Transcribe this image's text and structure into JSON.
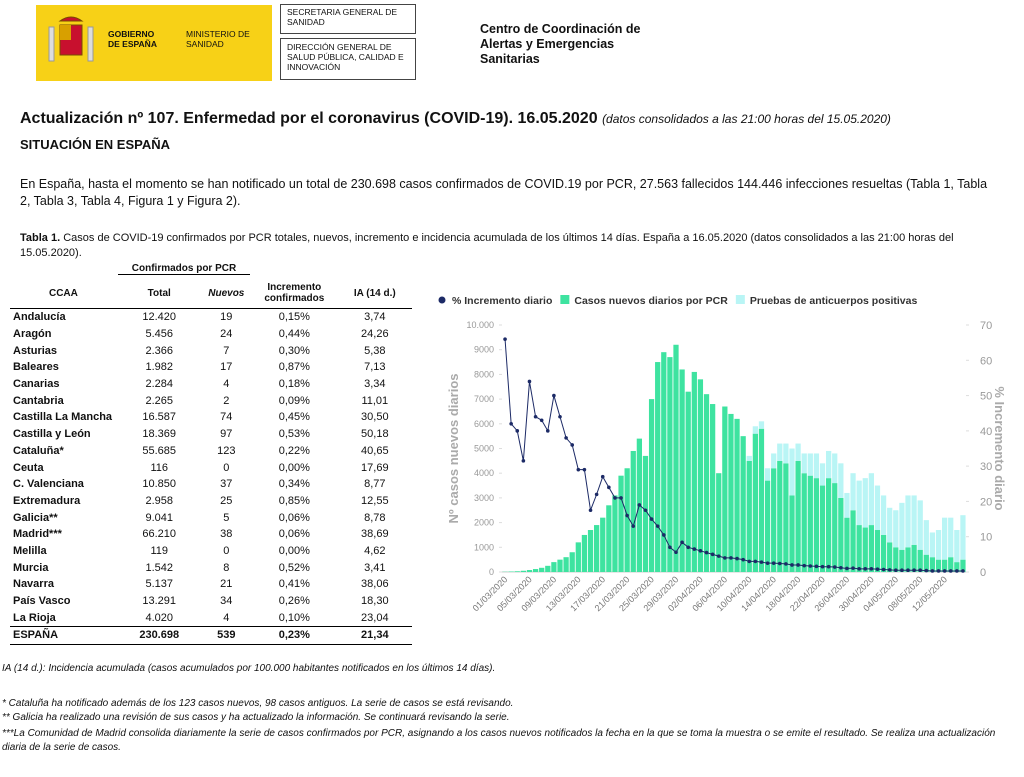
{
  "header": {
    "gov": "GOBIERNO DE ESPAÑA",
    "ministry": "MINISTERIO DE SANIDAD",
    "box1": "SECRETARIA GENERAL DE SANIDAD",
    "box2": "DIRECCIÓN GENERAL DE SALUD PÚBLICA, CALIDAD E INNOVACIÓN",
    "center": "Centro de Coordinación de Alertas y Emergencias Sanitarias"
  },
  "title": "Actualización nº 107. Enfermedad por el coronavirus (COVID-19). 16.05.2020",
  "title_note": "(datos consolidados a las 21:00 horas del 15.05.2020)",
  "section": "SITUACIÓN EN ESPAÑA",
  "intro": "En España, hasta el momento se han notificado un total de 230.698 casos confirmados de COVID.19 por PCR, 27.563 fallecidos 144.446 infecciones resueltas (Tabla 1, Tabla 2, Tabla 3, Tabla 4, Figura 1 y Figura 2).",
  "table": {
    "caption_label": "Tabla 1.",
    "caption": "Casos de COVID-19 confirmados por PCR totales, nuevos, incremento e incidencia acumulada de los últimos 14 días. España a 16.05.2020 (datos consolidados a las 21:00 horas del 15.05.2020).",
    "group": "Confirmados por PCR",
    "columns": [
      "CCAA",
      "Total",
      "Nuevos",
      "Incremento confirmados",
      "IA (14 d.)"
    ],
    "rows": [
      [
        "Andalucía",
        "12.420",
        "19",
        "0,15%",
        "3,74"
      ],
      [
        "Aragón",
        "5.456",
        "24",
        "0,44%",
        "24,26"
      ],
      [
        "Asturias",
        "2.366",
        "7",
        "0,30%",
        "5,38"
      ],
      [
        "Baleares",
        "1.982",
        "17",
        "0,87%",
        "7,13"
      ],
      [
        "Canarias",
        "2.284",
        "4",
        "0,18%",
        "3,34"
      ],
      [
        "Cantabria",
        "2.265",
        "2",
        "0,09%",
        "11,01"
      ],
      [
        "Castilla La Mancha",
        "16.587",
        "74",
        "0,45%",
        "30,50"
      ],
      [
        "Castilla y León",
        "18.369",
        "97",
        "0,53%",
        "50,18"
      ],
      [
        "Cataluña*",
        "55.685",
        "123",
        "0,22%",
        "40,65"
      ],
      [
        "Ceuta",
        "116",
        "0",
        "0,00%",
        "17,69"
      ],
      [
        "C. Valenciana",
        "10.850",
        "37",
        "0,34%",
        "8,77"
      ],
      [
        "Extremadura",
        "2.958",
        "25",
        "0,85%",
        "12,55"
      ],
      [
        "Galicia**",
        "9.041",
        "5",
        "0,06%",
        "8,78"
      ],
      [
        "Madrid***",
        "66.210",
        "38",
        "0,06%",
        "38,69"
      ],
      [
        "Melilla",
        "119",
        "0",
        "0,00%",
        "4,62"
      ],
      [
        "Murcia",
        "1.542",
        "8",
        "0,52%",
        "3,41"
      ],
      [
        "Navarra",
        "5.137",
        "21",
        "0,41%",
        "38,06"
      ],
      [
        "País Vasco",
        "13.291",
        "34",
        "0,26%",
        "18,30"
      ],
      [
        "La Rioja",
        "4.020",
        "4",
        "0,10%",
        "23,04"
      ]
    ],
    "total": [
      "ESPAÑA",
      "230.698",
      "539",
      "0,23%",
      "21,34"
    ]
  },
  "chart_data": {
    "type": "bar",
    "ylabel": "Nº casos nuevos diarios",
    "y2label": "% Incremento diario",
    "categories": [
      "01/03/2020",
      null,
      null,
      null,
      "05/03/2020",
      null,
      null,
      null,
      "09/03/2020",
      null,
      null,
      null,
      "13/03/2020",
      null,
      null,
      null,
      "17/03/2020",
      null,
      null,
      null,
      "21/03/2020",
      null,
      null,
      null,
      "25/03/2020",
      null,
      null,
      null,
      "29/03/2020",
      null,
      null,
      null,
      "02/04/2020",
      null,
      null,
      null,
      "06/04/2020",
      null,
      null,
      null,
      "10/04/2020",
      null,
      null,
      null,
      "14/04/2020",
      null,
      null,
      null,
      "18/04/2020",
      null,
      null,
      null,
      "22/04/2020",
      null,
      null,
      null,
      "26/04/2020",
      null,
      null,
      null,
      "30/04/2020",
      null,
      null,
      null,
      "04/05/2020",
      null,
      null,
      null,
      "08/05/2020",
      null,
      null,
      null,
      "12/05/2020",
      null,
      null,
      null
    ],
    "series": [
      {
        "name": "% Incremento diario",
        "color": "#1c2a66",
        "axis": "y2",
        "kind": "line",
        "values": [
          66,
          42,
          40,
          31.5,
          54,
          44,
          43,
          40,
          50,
          44,
          38,
          36,
          29,
          29,
          17.5,
          22,
          27,
          24,
          21,
          21,
          16,
          13,
          19,
          17.5,
          15,
          13,
          10.5,
          7,
          5.6,
          8.4,
          7,
          6.5,
          6,
          5.5,
          5,
          4.5,
          4,
          4,
          3.8,
          3.5,
          3,
          3,
          2.8,
          2.5,
          2.5,
          2.4,
          2.3,
          2,
          2,
          1.8,
          1.7,
          1.6,
          1.5,
          1.5,
          1.4,
          1.2,
          1,
          1.1,
          0.9,
          0.9,
          0.9,
          0.8,
          0.7,
          0.6,
          0.5,
          0.5,
          0.5,
          0.5,
          0.5,
          0.4,
          0.3,
          0.3,
          0.3,
          0.3,
          0.3,
          0.3
        ]
      },
      {
        "name": "Casos nuevos diarios por PCR",
        "color": "#3ee3a0",
        "kind": "bar",
        "values": [
          10,
          20,
          30,
          50,
          80,
          120,
          170,
          250,
          400,
          500,
          600,
          800,
          1200,
          1500,
          1700,
          1900,
          2200,
          2700,
          3100,
          3900,
          4200,
          4900,
          5400,
          4700,
          7000,
          8500,
          8900,
          8700,
          9200,
          8200,
          7300,
          8100,
          7800,
          7200,
          6800,
          4000,
          6700,
          6400,
          6200,
          5500,
          4500,
          5600,
          5800,
          3700,
          4200,
          4500,
          4400,
          3100,
          4500,
          4000,
          3900,
          3800,
          3500,
          3800,
          3600,
          3000,
          2200,
          2500,
          1900,
          1800,
          1900,
          1700,
          1500,
          1200,
          1000,
          900,
          1000,
          1100,
          900,
          700,
          600,
          500,
          500,
          600,
          400,
          500
        ]
      },
      {
        "name": "Pruebas de anticuerpos positivas",
        "color": "#b9f5f5",
        "kind": "bar",
        "values": [
          0,
          0,
          0,
          0,
          0,
          0,
          0,
          0,
          0,
          0,
          0,
          0,
          0,
          0,
          0,
          0,
          0,
          0,
          0,
          0,
          0,
          0,
          0,
          0,
          0,
          0,
          0,
          0,
          0,
          0,
          0,
          0,
          0,
          0,
          0,
          0,
          0,
          0,
          0,
          0,
          200,
          300,
          300,
          500,
          600,
          700,
          800,
          1900,
          700,
          800,
          900,
          1000,
          900,
          1100,
          1200,
          1400,
          1000,
          1500,
          1800,
          2000,
          2100,
          1800,
          1600,
          1400,
          1500,
          1900,
          2100,
          2000,
          2000,
          1400,
          1000,
          1200,
          1700,
          1600,
          1300,
          1800
        ]
      }
    ],
    "ylim": [
      0,
      10000
    ],
    "yticks": [
      0,
      1000,
      2000,
      3000,
      4000,
      5000,
      6000,
      7000,
      8000,
      9000,
      {
        "value": 10000,
        "label": "10.000"
      }
    ],
    "y2lim": [
      0,
      70
    ],
    "y2ticks": [
      0,
      10,
      20,
      30,
      40,
      50,
      60,
      70
    ],
    "grid": false,
    "legend": "top"
  },
  "footnotes": [
    "IA (14 d.): Incidencia acumulada (casos acumulados por 100.000 habitantes notificados en los últimos 14 días).",
    "* Cataluña ha notificado además de los 123 casos nuevos, 98 casos antiguos. La serie de casos se está revisando.",
    "** Galicia ha realizado una revisión de sus casos y ha actualizado la información. Se continuará revisando la serie.",
    "***La Comunidad de Madrid consolida diariamente la serie de casos confirmados por PCR, asignando a los casos nuevos notificados la fecha en la que se toma la muestra o se emite el resultado. Se realiza una actualización diaria de la serie de casos."
  ]
}
